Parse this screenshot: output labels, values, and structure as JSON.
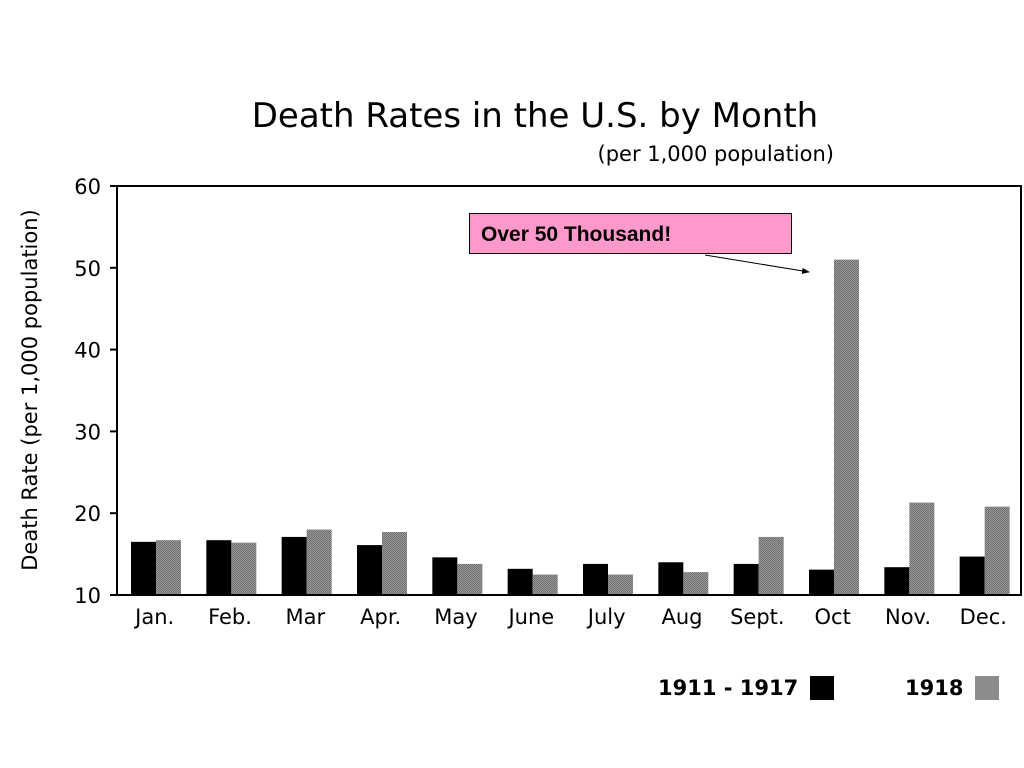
{
  "chart_data": {
    "type": "bar",
    "title": "Death Rates in the U.S. by Month",
    "subtitle": "(per 1,000 population)",
    "xlabel": "",
    "ylabel": "Death Rate  (per 1,000 population)",
    "categories": [
      "Jan.",
      "Feb.",
      "Mar",
      "Apr.",
      "May",
      "June",
      "July",
      "Aug",
      "Sept.",
      "Oct",
      "Nov.",
      "Dec."
    ],
    "series": [
      {
        "name": "1911 - 1917",
        "color": "#000000",
        "values": [
          16.5,
          16.7,
          17.1,
          16.1,
          14.6,
          13.2,
          13.8,
          14.0,
          13.8,
          13.1,
          13.4,
          14.7
        ]
      },
      {
        "name": "1918",
        "color": "#8c8c8c",
        "values": [
          16.7,
          16.4,
          18.0,
          17.7,
          13.8,
          12.5,
          12.5,
          12.8,
          17.1,
          51.0,
          21.3,
          20.8
        ]
      }
    ],
    "ylim": [
      10,
      60
    ],
    "yticks": [
      10,
      20,
      30,
      40,
      50,
      60
    ],
    "grid": false,
    "legend": "bottom-right",
    "annotation": {
      "text": "Over 50 Thousand!",
      "color": "#ff99cc",
      "target_category": "Oct",
      "target_value": 51.0
    }
  }
}
